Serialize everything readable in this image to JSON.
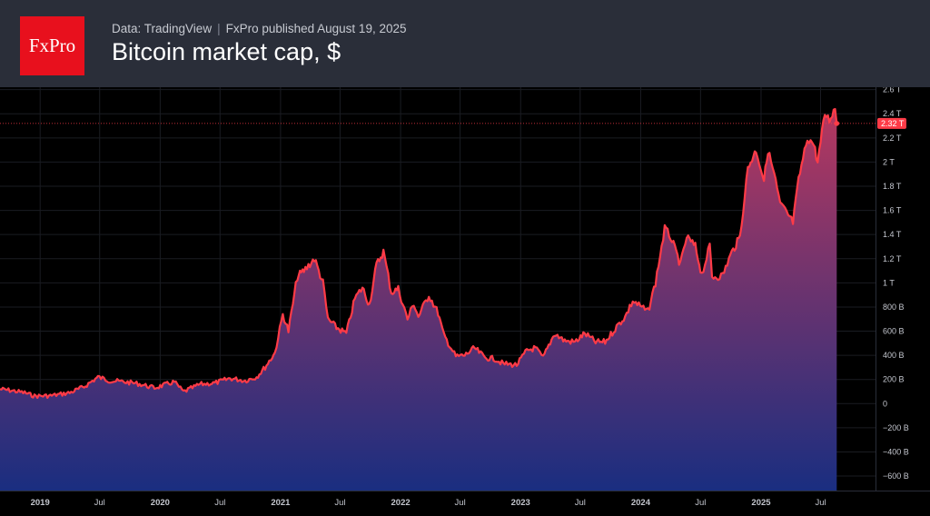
{
  "header": {
    "logo_text": "FxPro",
    "source_text": "Data: TradingView",
    "separator": "|",
    "published_text": "FxPro published  August 19, 2025",
    "title": "Bitcoin market cap, $"
  },
  "colors": {
    "header_bg": "#2a2e39",
    "logo_bg": "#e8101d",
    "plot_bg": "#000000",
    "line": "#ff3b47",
    "area_top": "#b5385f",
    "area_bottom": "#1a2e80",
    "last_badge": "#ff3b47"
  },
  "chart_data": {
    "type": "area",
    "title": "Bitcoin market cap, $",
    "xlabel": "",
    "ylabel": "",
    "ylim": [
      -720000000000,
      2620000000000
    ],
    "xlim": [
      "2018-09-01",
      "2025-12-15"
    ],
    "y_ticks": [
      {
        "value": 2600000000000,
        "label": "2.6 T"
      },
      {
        "value": 2400000000000,
        "label": "2.4 T"
      },
      {
        "value": 2200000000000,
        "label": "2.2 T"
      },
      {
        "value": 2000000000000,
        "label": "2 T"
      },
      {
        "value": 1800000000000,
        "label": "1.8 T"
      },
      {
        "value": 1600000000000,
        "label": "1.6 T"
      },
      {
        "value": 1400000000000,
        "label": "1.4 T"
      },
      {
        "value": 1200000000000,
        "label": "1.2 T"
      },
      {
        "value": 1000000000000,
        "label": "1 T"
      },
      {
        "value": 800000000000,
        "label": "800 B"
      },
      {
        "value": 600000000000,
        "label": "600 B"
      },
      {
        "value": 400000000000,
        "label": "400 B"
      },
      {
        "value": 200000000000,
        "label": "200 B"
      },
      {
        "value": 0,
        "label": "0"
      },
      {
        "value": -200000000000,
        "label": "−200 B"
      },
      {
        "value": -400000000000,
        "label": "−400 B"
      },
      {
        "value": -600000000000,
        "label": "−600 B"
      }
    ],
    "x_ticks": [
      {
        "date": "2019-01-01",
        "label": "2019",
        "major": true
      },
      {
        "date": "2019-07-01",
        "label": "Jul",
        "major": false
      },
      {
        "date": "2020-01-01",
        "label": "2020",
        "major": true
      },
      {
        "date": "2020-07-01",
        "label": "Jul",
        "major": false
      },
      {
        "date": "2021-01-01",
        "label": "2021",
        "major": true
      },
      {
        "date": "2021-07-01",
        "label": "Jul",
        "major": false
      },
      {
        "date": "2022-01-01",
        "label": "2022",
        "major": true
      },
      {
        "date": "2022-07-01",
        "label": "Jul",
        "major": false
      },
      {
        "date": "2023-01-01",
        "label": "2023",
        "major": true
      },
      {
        "date": "2023-07-01",
        "label": "Jul",
        "major": false
      },
      {
        "date": "2024-01-01",
        "label": "2024",
        "major": true
      },
      {
        "date": "2024-07-01",
        "label": "Jul",
        "major": false
      },
      {
        "date": "2025-01-01",
        "label": "2025",
        "major": true
      },
      {
        "date": "2025-07-01",
        "label": "Jul",
        "major": false
      }
    ],
    "last_value": {
      "value": 2320000000000,
      "label": "2.32 T"
    },
    "grid": true,
    "legend": "none",
    "series": [
      {
        "x": [
          "2018-09-01",
          "2018-10-01",
          "2018-11-15",
          "2018-12-15",
          "2019-02-01",
          "2019-04-01",
          "2019-05-15",
          "2019-06-26",
          "2019-08-01",
          "2019-09-15",
          "2019-10-26",
          "2019-12-15",
          "2020-02-13",
          "2020-03-12",
          "2020-05-01",
          "2020-06-15",
          "2020-08-01",
          "2020-09-15",
          "2020-10-20",
          "2020-11-15",
          "2020-12-15",
          "2021-01-08",
          "2021-01-25",
          "2021-02-21",
          "2021-03-13",
          "2021-04-14",
          "2021-05-10",
          "2021-05-25",
          "2021-06-20",
          "2021-07-20",
          "2021-08-15",
          "2021-09-07",
          "2021-09-28",
          "2021-10-20",
          "2021-11-10",
          "2021-12-04",
          "2021-12-25",
          "2022-01-22",
          "2022-02-10",
          "2022-02-24",
          "2022-03-28",
          "2022-04-25",
          "2022-05-12",
          "2022-06-18",
          "2022-07-15",
          "2022-08-14",
          "2022-09-15",
          "2022-10-15",
          "2022-11-09",
          "2022-12-20",
          "2023-01-20",
          "2023-02-15",
          "2023-03-10",
          "2023-04-14",
          "2023-05-15",
          "2023-06-15",
          "2023-07-15",
          "2023-08-17",
          "2023-09-15",
          "2023-10-24",
          "2023-11-15",
          "2023-12-08",
          "2024-01-23",
          "2024-02-15",
          "2024-03-14",
          "2024-04-01",
          "2024-05-01",
          "2024-05-20",
          "2024-06-15",
          "2024-07-05",
          "2024-07-29",
          "2024-08-05",
          "2024-09-06",
          "2024-09-30",
          "2024-10-29",
          "2024-11-12",
          "2024-11-22",
          "2024-12-17",
          "2025-01-10",
          "2025-01-22",
          "2025-02-10",
          "2025-02-28",
          "2025-03-15",
          "2025-04-08",
          "2025-04-25",
          "2025-05-22",
          "2025-06-10",
          "2025-06-22",
          "2025-07-14",
          "2025-07-28",
          "2025-08-14",
          "2025-08-19"
        ],
        "y": [
          120000000000,
          110000000000,
          90000000000,
          63000000000,
          65000000000,
          90000000000,
          140000000000,
          220000000000,
          190000000000,
          180000000000,
          165000000000,
          130000000000,
          180000000000,
          98000000000,
          160000000000,
          170000000000,
          210000000000,
          190000000000,
          220000000000,
          300000000000,
          420000000000,
          740000000000,
          600000000000,
          1050000000000,
          1100000000000,
          1200000000000,
          1000000000000,
          700000000000,
          630000000000,
          580000000000,
          870000000000,
          960000000000,
          820000000000,
          1150000000000,
          1260000000000,
          920000000000,
          950000000000,
          700000000000,
          830000000000,
          720000000000,
          900000000000,
          750000000000,
          570000000000,
          390000000000,
          400000000000,
          460000000000,
          380000000000,
          370000000000,
          330000000000,
          320000000000,
          440000000000,
          460000000000,
          380000000000,
          580000000000,
          520000000000,
          510000000000,
          580000000000,
          510000000000,
          510000000000,
          650000000000,
          720000000000,
          850000000000,
          760000000000,
          1000000000000,
          1450000000000,
          1380000000000,
          1150000000000,
          1380000000000,
          1300000000000,
          1070000000000,
          1300000000000,
          1050000000000,
          1060000000000,
          1230000000000,
          1380000000000,
          1720000000000,
          1950000000000,
          2100000000000,
          1850000000000,
          2100000000000,
          1900000000000,
          1650000000000,
          1600000000000,
          1500000000000,
          1850000000000,
          2200000000000,
          2150000000000,
          2000000000000,
          2400000000000,
          2350000000000,
          2450000000000,
          2320000000000
        ]
      }
    ]
  }
}
